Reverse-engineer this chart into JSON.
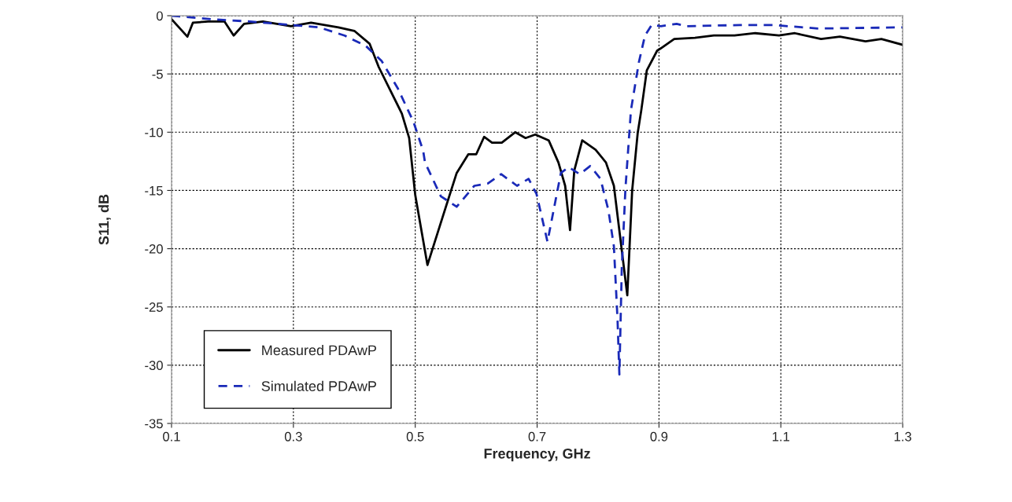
{
  "chart_data": {
    "type": "line",
    "xlabel": "Frequency, GHz",
    "ylabel": "S11, dB",
    "xlim": [
      0.1,
      1.3
    ],
    "xticks": [
      0.1,
      0.3,
      0.5,
      0.7,
      0.9,
      1.1,
      1.3
    ],
    "ylim": [
      -35,
      0
    ],
    "yticks": [
      -35,
      -30,
      -25,
      -20,
      -15,
      -10,
      -5,
      0
    ],
    "grid": true,
    "legend": "bottom left",
    "marker": "none",
    "series": [
      {
        "name": "Measured PDAwP",
        "color": "#000000",
        "line_style": "solid",
        "x": [
          0.1,
          0.126,
          0.135,
          0.16,
          0.187,
          0.202,
          0.219,
          0.25,
          0.296,
          0.329,
          0.374,
          0.4,
          0.425,
          0.44,
          0.478,
          0.49,
          0.5,
          0.52,
          0.546,
          0.568,
          0.587,
          0.6,
          0.613,
          0.626,
          0.642,
          0.664,
          0.681,
          0.697,
          0.719,
          0.735,
          0.746,
          0.754,
          0.761,
          0.774,
          0.796,
          0.813,
          0.826,
          0.848,
          0.856,
          0.865,
          0.871,
          0.88,
          0.897,
          0.903,
          0.925,
          0.959,
          0.99,
          1.024,
          1.058,
          1.097,
          1.123,
          1.166,
          1.197,
          1.239,
          1.265,
          1.3
        ],
        "values": [
          -0.3,
          -1.8,
          -0.6,
          -0.5,
          -0.5,
          -1.7,
          -0.7,
          -0.5,
          -0.9,
          -0.6,
          -1.0,
          -1.3,
          -2.4,
          -4.4,
          -8.4,
          -10.5,
          -15.4,
          -21.4,
          -17.1,
          -13.5,
          -11.9,
          -11.9,
          -10.4,
          -10.9,
          -10.9,
          -10.0,
          -10.5,
          -10.2,
          -10.7,
          -12.6,
          -14.6,
          -18.4,
          -13.3,
          -10.7,
          -11.5,
          -12.6,
          -14.6,
          -24.0,
          -15.0,
          -10.1,
          -8.1,
          -4.7,
          -3.0,
          -2.8,
          -2.0,
          -1.9,
          -1.7,
          -1.7,
          -1.5,
          -1.7,
          -1.5,
          -2.0,
          -1.8,
          -2.2,
          -2.0,
          -2.5
        ]
      },
      {
        "name": "Simulated PDAwP",
        "color": "#1a2ab8",
        "line_style": "dashed",
        "x": [
          0.1,
          0.165,
          0.229,
          0.298,
          0.342,
          0.384,
          0.419,
          0.445,
          0.471,
          0.497,
          0.513,
          0.516,
          0.542,
          0.568,
          0.597,
          0.619,
          0.641,
          0.667,
          0.686,
          0.699,
          0.717,
          0.739,
          0.752,
          0.77,
          0.787,
          0.804,
          0.817,
          0.826,
          0.832,
          0.835,
          0.839,
          0.845,
          0.854,
          0.867,
          0.877,
          0.888,
          0.903,
          0.929,
          0.946,
          1.033,
          1.088,
          1.162,
          1.3
        ],
        "values": [
          0.0,
          -0.3,
          -0.5,
          -0.8,
          -1.0,
          -1.7,
          -2.6,
          -3.9,
          -6.2,
          -9.1,
          -11.6,
          -12.6,
          -15.5,
          -16.4,
          -14.6,
          -14.4,
          -13.6,
          -14.6,
          -14.0,
          -15.3,
          -19.4,
          -13.5,
          -13.0,
          -13.6,
          -12.9,
          -14.0,
          -16.7,
          -19.8,
          -26.1,
          -30.8,
          -21.6,
          -14.8,
          -8.1,
          -4.0,
          -1.7,
          -0.8,
          -0.9,
          -0.7,
          -0.9,
          -0.8,
          -0.8,
          -1.1,
          -1.0
        ]
      }
    ]
  }
}
